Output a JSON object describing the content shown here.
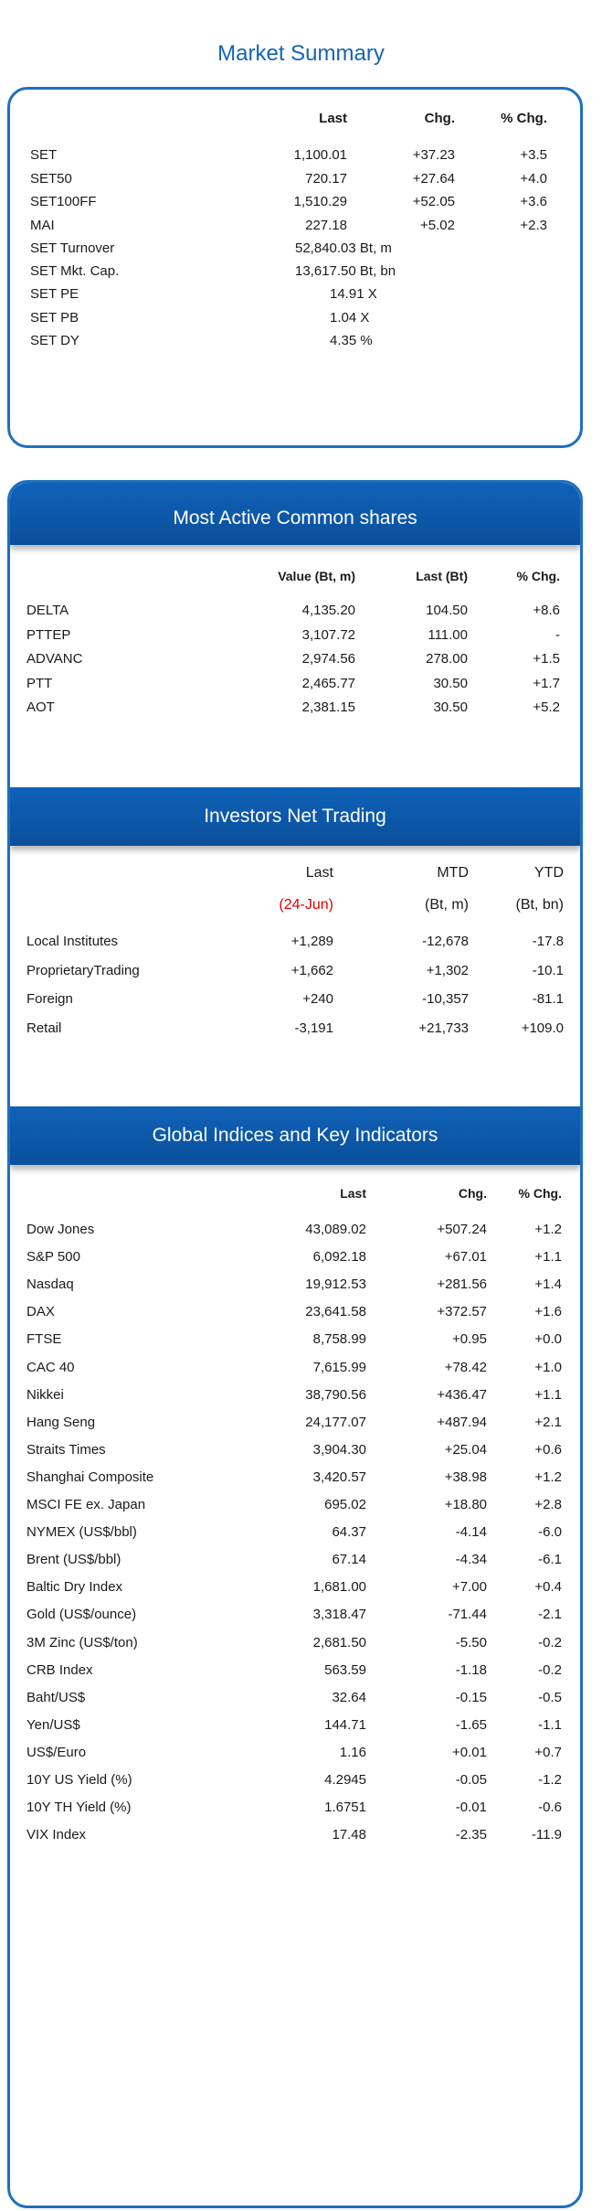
{
  "title": "Market Summary",
  "summary": {
    "headers": [
      "Last",
      "Chg.",
      "% Chg."
    ],
    "rows": [
      {
        "name": "SET",
        "last": "1,100.01",
        "chg": "+37.23",
        "pct": "+3.5"
      },
      {
        "name": "SET50",
        "last": "720.17",
        "chg": "+27.64",
        "pct": "+4.0"
      },
      {
        "name": "SET100FF",
        "last": "1,510.29",
        "chg": "+52.05",
        "pct": "+3.6"
      },
      {
        "name": "MAI",
        "last": "227.18",
        "chg": "+5.02",
        "pct": "+2.3"
      }
    ],
    "stats": [
      {
        "name": "SET Turnover",
        "value": "52,840.03 Bt, m"
      },
      {
        "name": "SET Mkt. Cap.",
        "value": "13,617.50 Bt, bn"
      },
      {
        "name": "SET PE",
        "value": "14.91 X"
      },
      {
        "name": "SET PB",
        "value": "1.04 X"
      },
      {
        "name": "SET DY",
        "value": "4.35 %"
      }
    ]
  },
  "most_active": {
    "title": "Most Active Common shares",
    "headers": [
      "Value (Bt, m)",
      "Last (Bt)",
      "% Chg."
    ],
    "rows": [
      {
        "name": "DELTA",
        "value": "4,135.20",
        "last": "104.50",
        "pct": "+8.6"
      },
      {
        "name": "PTTEP",
        "value": "3,107.72",
        "last": "111.00",
        "pct": "-"
      },
      {
        "name": "ADVANC",
        "value": "2,974.56",
        "last": "278.00",
        "pct": "+1.5"
      },
      {
        "name": "PTT",
        "value": "2,465.77",
        "last": "30.50",
        "pct": "+1.7"
      },
      {
        "name": "AOT",
        "value": "2,381.15",
        "last": "30.50",
        "pct": "+5.2"
      }
    ]
  },
  "investors": {
    "title": "Investors Net Trading",
    "headers": [
      "Last",
      "MTD",
      "YTD"
    ],
    "subheaders": [
      "(24-Jun)",
      "(Bt, m)",
      "(Bt, bn)"
    ],
    "rows": [
      {
        "name": "Local Institutes",
        "last": "+1,289",
        "mtd": "-12,678",
        "ytd": "-17.8"
      },
      {
        "name": "ProprietaryTrading",
        "last": "+1,662",
        "mtd": "+1,302",
        "ytd": "-10.1"
      },
      {
        "name": "Foreign",
        "last": "+240",
        "mtd": "-10,357",
        "ytd": "-81.1"
      },
      {
        "name": "Retail",
        "last": "-3,191",
        "mtd": "+21,733",
        "ytd": "+109.0"
      }
    ],
    "accent_color": "#e00000"
  },
  "global": {
    "title": "Global Indices and Key Indicators",
    "headers": [
      "Last",
      "Chg.",
      "% Chg."
    ],
    "rows": [
      {
        "name": "Dow Jones",
        "last": "43,089.02",
        "chg": "+507.24",
        "pct": "+1.2"
      },
      {
        "name": "S&P 500",
        "last": "6,092.18",
        "chg": "+67.01",
        "pct": "+1.1"
      },
      {
        "name": "Nasdaq",
        "last": "19,912.53",
        "chg": "+281.56",
        "pct": "+1.4"
      },
      {
        "name": "DAX",
        "last": "23,641.58",
        "chg": "+372.57",
        "pct": "+1.6"
      },
      {
        "name": "FTSE",
        "last": "8,758.99",
        "chg": "+0.95",
        "pct": "+0.0"
      },
      {
        "name": "CAC 40",
        "last": "7,615.99",
        "chg": "+78.42",
        "pct": "+1.0"
      },
      {
        "name": "Nikkei",
        "last": "38,790.56",
        "chg": "+436.47",
        "pct": "+1.1"
      },
      {
        "name": "Hang Seng",
        "last": "24,177.07",
        "chg": "+487.94",
        "pct": "+2.1"
      },
      {
        "name": "Straits Times",
        "last": "3,904.30",
        "chg": "+25.04",
        "pct": "+0.6"
      },
      {
        "name": "Shanghai Composite",
        "last": "3,420.57",
        "chg": "+38.98",
        "pct": "+1.2"
      },
      {
        "name": "MSCI FE ex. Japan",
        "last": "695.02",
        "chg": "+18.80",
        "pct": "+2.8"
      },
      {
        "name": "NYMEX (US$/bbl)",
        "last": "64.37",
        "chg": "-4.14",
        "pct": "-6.0"
      },
      {
        "name": "Brent (US$/bbl)",
        "last": "67.14",
        "chg": "-4.34",
        "pct": "-6.1"
      },
      {
        "name": "Baltic Dry Index",
        "last": "1,681.00",
        "chg": "+7.00",
        "pct": "+0.4"
      },
      {
        "name": "Gold (US$/ounce)",
        "last": "3,318.47",
        "chg": "-71.44",
        "pct": "-2.1"
      },
      {
        "name": "3M Zinc (US$/ton)",
        "last": "2,681.50",
        "chg": "-5.50",
        "pct": "-0.2"
      },
      {
        "name": "CRB Index",
        "last": "563.59",
        "chg": "-1.18",
        "pct": "-0.2"
      },
      {
        "name": "Baht/US$",
        "last": "32.64",
        "chg": "-0.15",
        "pct": "-0.5"
      },
      {
        "name": "Yen/US$",
        "last": "144.71",
        "chg": "-1.65",
        "pct": "-1.1"
      },
      {
        "name": "US$/Euro",
        "last": "1.16",
        "chg": "+0.01",
        "pct": "+0.7"
      },
      {
        "name": "10Y US Yield (%)",
        "last": "4.2945",
        "chg": "-0.05",
        "pct": "-1.2"
      },
      {
        "name": "10Y TH Yield (%)",
        "last": "1.6751",
        "chg": "-0.01",
        "pct": "-0.6"
      },
      {
        "name": "VIX Index",
        "last": "17.48",
        "chg": "-2.35",
        "pct": "-11.9"
      }
    ]
  },
  "colors": {
    "brand_blue": "#1565b0",
    "band_blue": "#0b4f9c",
    "border_blue": "#1e6fc0"
  }
}
